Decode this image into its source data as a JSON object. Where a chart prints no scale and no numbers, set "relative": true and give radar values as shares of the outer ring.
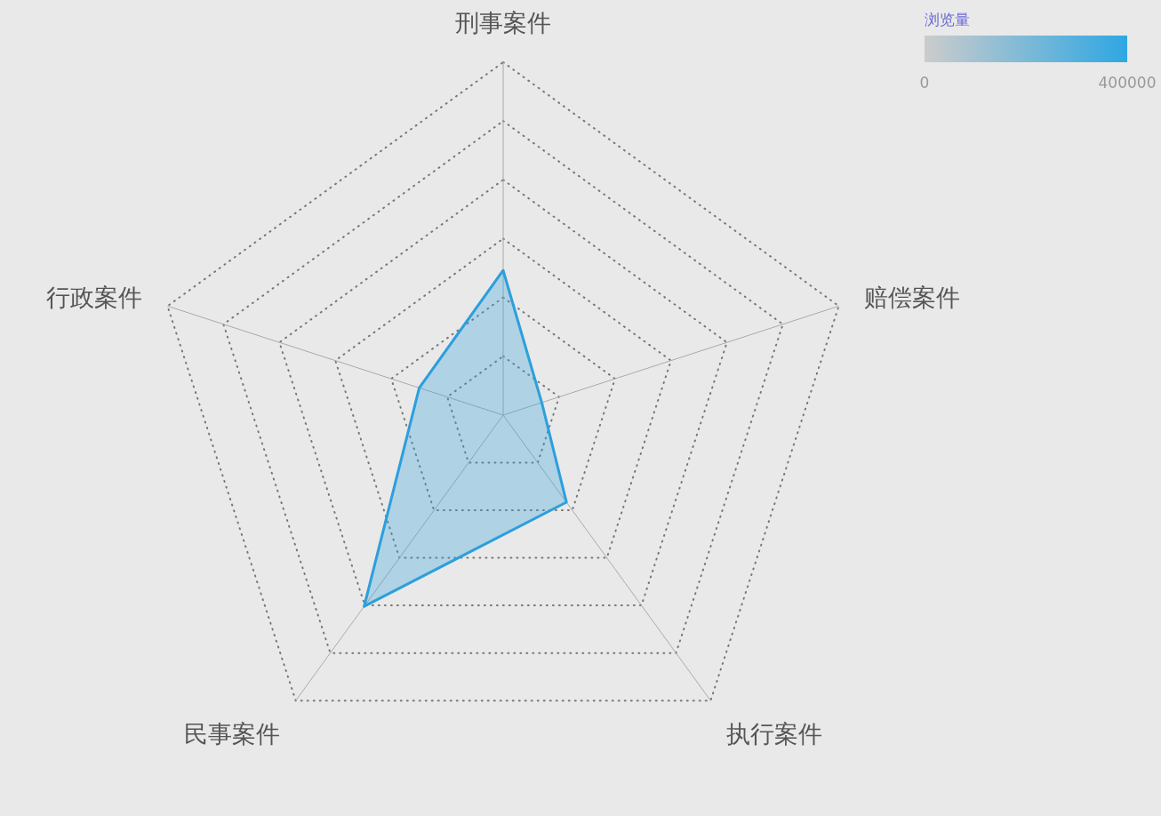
{
  "chart_data": {
    "type": "radar",
    "relative": true,
    "grid": true,
    "categories": [
      "刑事案件",
      "赔偿案件",
      "执行案件",
      "民事案件",
      "行政案件"
    ],
    "series": [
      {
        "color": "#2c9fdc",
        "values": [
          0.41,
          0.115,
          0.305,
          0.67,
          0.25
        ]
      }
    ],
    "clabel": "浏览量",
    "annotations": [
      "0",
      "400000"
    ]
  }
}
